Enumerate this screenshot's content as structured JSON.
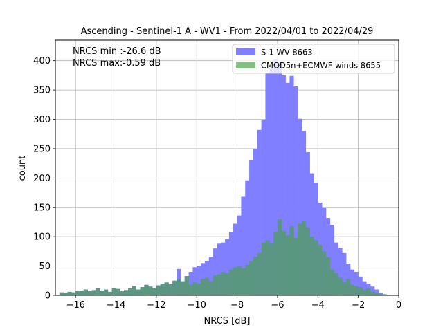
{
  "chart_data": {
    "type": "bar",
    "title": "Ascending - Sentinel-1 A - WV1 - From 2022/04/01 to 2022/04/29",
    "xlabel": "NRCS [dB]",
    "ylabel": "count",
    "xlim": [
      -17,
      0
    ],
    "ylim": [
      0,
      435
    ],
    "grid": true,
    "legend_position": "top-right",
    "annotations": [
      "NRCS min :-26.6 dB",
      "NRCS max:-0.59 dB"
    ],
    "xticks": [
      -16,
      -14,
      -12,
      -10,
      -8,
      -6,
      -4,
      -2,
      0
    ],
    "xtick_labels": [
      "−16",
      "−14",
      "−12",
      "−10",
      "−8",
      "−6",
      "−4",
      "−2",
      "0"
    ],
    "yticks": [
      0,
      50,
      100,
      150,
      200,
      250,
      300,
      350,
      400
    ],
    "yticks_labels": [
      "0",
      "50",
      "100",
      "150",
      "200",
      "250",
      "300",
      "350",
      "400"
    ],
    "bin_width": 0.2,
    "bin_start": -16.8,
    "series": [
      {
        "name": "S-1 WV 8663",
        "color": "#7f7fff",
        "values": [
          5,
          4,
          6,
          5,
          7,
          8,
          10,
          7,
          9,
          12,
          8,
          10,
          6,
          13,
          11,
          7,
          9,
          12,
          16,
          10,
          14,
          18,
          15,
          12,
          17,
          20,
          22,
          19,
          25,
          45,
          24,
          33,
          40,
          48,
          50,
          55,
          58,
          66,
          80,
          88,
          90,
          96,
          108,
          122,
          136,
          168,
          196,
          230,
          249,
          282,
          299,
          378,
          388,
          402,
          398,
          375,
          362,
          374,
          356,
          301,
          280,
          244,
          208,
          192,
          158,
          150,
          132,
          120,
          90,
          81,
          72,
          54,
          44,
          40,
          32,
          24,
          20,
          15,
          10,
          4,
          2,
          1
        ]
      },
      {
        "name": "CMOD5n+ECMWF winds 8655",
        "color": "#4aa04a",
        "values": [
          5,
          4,
          6,
          5,
          7,
          8,
          10,
          7,
          9,
          12,
          8,
          10,
          6,
          13,
          11,
          7,
          9,
          12,
          16,
          10,
          14,
          18,
          15,
          12,
          17,
          20,
          22,
          19,
          25,
          28,
          24,
          33,
          18,
          22,
          20,
          28,
          30,
          24,
          34,
          36,
          40,
          38,
          44,
          48,
          50,
          46,
          52,
          58,
          66,
          72,
          90,
          94,
          88,
          108,
          130,
          110,
          102,
          118,
          98,
          122,
          126,
          116,
          100,
          94,
          86,
          75,
          65,
          44,
          38,
          30,
          22,
          28,
          18,
          16,
          14,
          10,
          12,
          6,
          4,
          2,
          1,
          0
        ]
      }
    ]
  }
}
